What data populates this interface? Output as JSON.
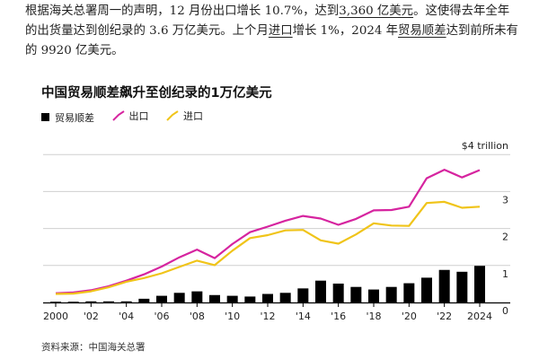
{
  "article": {
    "p1": "根据海关总署周一的声明，12 月份出口增长 10.7%，达到",
    "p1_link": "3,360 亿美元",
    "p2": "。这使得去年全年的出货量达到创纪录的 3.6 万亿美元。上个月",
    "p2_link": "进口",
    "p3": "增长 1%，2024 年",
    "p3_link": "贸易顺差",
    "p4": "达到前所未有的 9920 亿美元。"
  },
  "source_note": "资料来源：中国海关总署",
  "colors": {
    "balance": "#000000",
    "exports": "#d6249f",
    "imports": "#f0c419",
    "grid": "#cfcfcf"
  },
  "chart_data": {
    "type": "bar+line",
    "title": "中国贸易顺差飙升至创纪录的1万亿美元",
    "x": [
      2000,
      2001,
      2002,
      2003,
      2004,
      2005,
      2006,
      2007,
      2008,
      2009,
      2010,
      2011,
      2012,
      2013,
      2014,
      2015,
      2016,
      2017,
      2018,
      2019,
      2020,
      2021,
      2022,
      2023,
      2024
    ],
    "x_tick_labels": [
      "2000",
      "'02",
      "'04",
      "'06",
      "'08",
      "'10",
      "'12",
      "'14",
      "'16",
      "'18",
      "'20",
      "'22",
      "2024"
    ],
    "x_tick_values": [
      2000,
      2002,
      2004,
      2006,
      2008,
      2010,
      2012,
      2014,
      2016,
      2018,
      2020,
      2022,
      2024
    ],
    "y_range": [
      0,
      4
    ],
    "y_ticks": [
      {
        "value": 0,
        "label": "0"
      },
      {
        "value": 1,
        "label": "1"
      },
      {
        "value": 2,
        "label": "2"
      },
      {
        "value": 3,
        "label": "3"
      },
      {
        "value": 4,
        "label": "$4 trillion"
      }
    ],
    "grid": true,
    "series": [
      {
        "name": "贸易顺差",
        "kind": "bar",
        "values": [
          0.02,
          0.02,
          0.03,
          0.03,
          0.03,
          0.1,
          0.18,
          0.26,
          0.3,
          0.2,
          0.18,
          0.16,
          0.23,
          0.26,
          0.38,
          0.59,
          0.51,
          0.42,
          0.35,
          0.42,
          0.52,
          0.67,
          0.88,
          0.83,
          0.99
        ]
      },
      {
        "name": "出口",
        "kind": "line",
        "values": [
          0.25,
          0.27,
          0.33,
          0.44,
          0.59,
          0.76,
          0.97,
          1.22,
          1.43,
          1.2,
          1.58,
          1.9,
          2.05,
          2.21,
          2.34,
          2.27,
          2.1,
          2.26,
          2.49,
          2.5,
          2.59,
          3.36,
          3.59,
          3.38,
          3.58
        ]
      },
      {
        "name": "进口",
        "kind": "line",
        "values": [
          0.23,
          0.24,
          0.3,
          0.41,
          0.56,
          0.66,
          0.79,
          0.96,
          1.13,
          1.01,
          1.4,
          1.74,
          1.82,
          1.95,
          1.96,
          1.68,
          1.59,
          1.84,
          2.14,
          2.08,
          2.07,
          2.69,
          2.72,
          2.56,
          2.59
        ]
      }
    ]
  }
}
